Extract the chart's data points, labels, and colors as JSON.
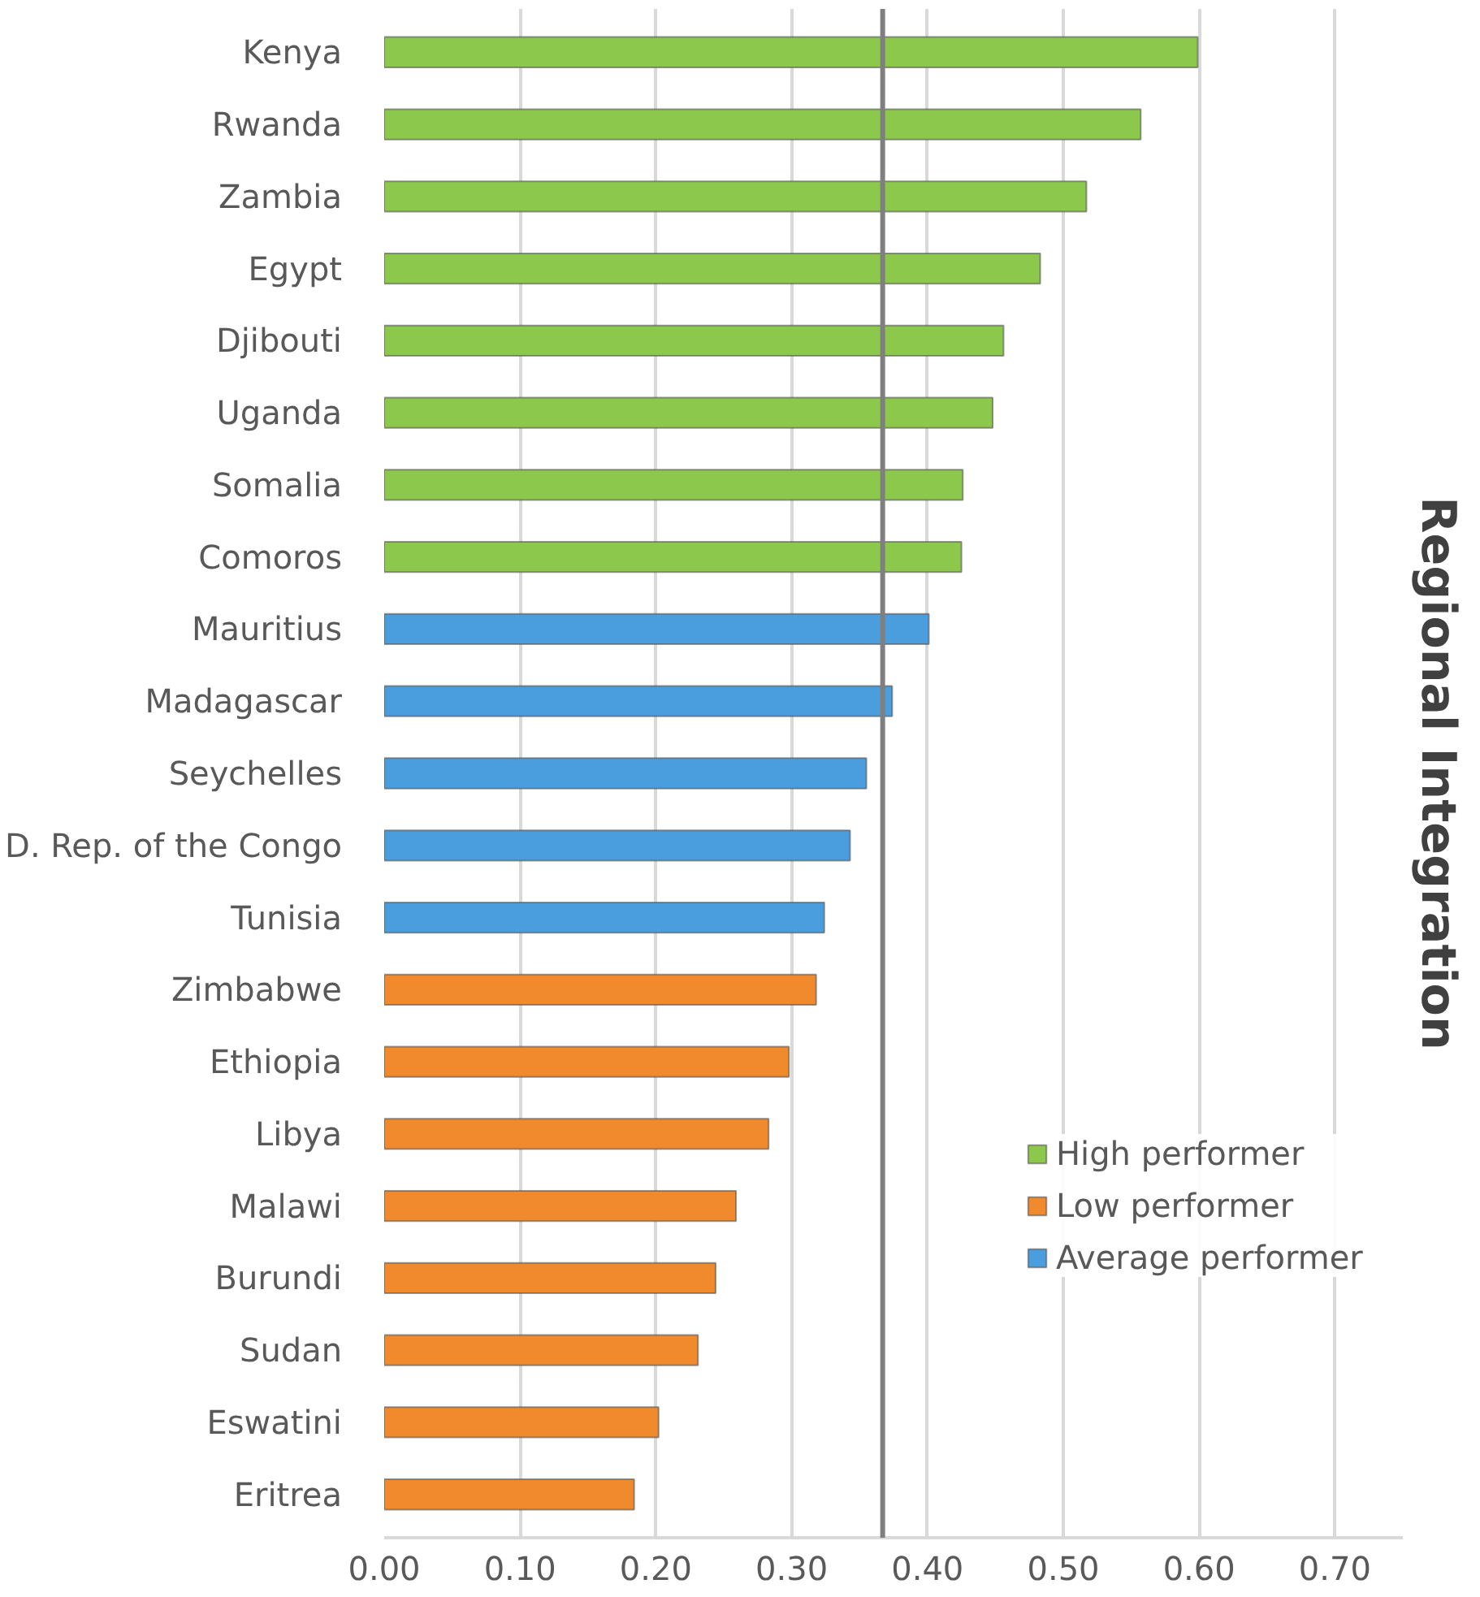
{
  "chart_data": {
    "type": "bar",
    "orientation": "horizontal",
    "ylabel": "Regional Integration",
    "categories": [
      "Kenya",
      "Rwanda",
      "Zambia",
      "Egypt",
      "Djibouti",
      "Uganda",
      "Somalia",
      "Comoros",
      "Mauritius",
      "Madagascar",
      "Seychelles",
      "D. Rep. of the Congo",
      "Tunisia",
      "Zimbabwe",
      "Ethiopia",
      "Libya",
      "Malawi",
      "Burundi",
      "Sudan",
      "Eswatini",
      "Eritrea"
    ],
    "series": [
      {
        "name": "High performer",
        "color": "#8cc84b",
        "values": [
          0.599,
          0.557,
          0.517,
          0.483,
          0.456,
          0.448,
          0.426,
          0.425,
          null,
          null,
          null,
          null,
          null,
          null,
          null,
          null,
          null,
          null,
          null,
          null,
          null
        ]
      },
      {
        "name": "Low performer",
        "color": "#f08a2c",
        "values": [
          null,
          null,
          null,
          null,
          null,
          null,
          null,
          null,
          null,
          null,
          null,
          null,
          null,
          0.318,
          0.298,
          0.283,
          0.259,
          0.244,
          0.231,
          0.202,
          0.184
        ]
      },
      {
        "name": "Average performer",
        "color": "#4a9ede",
        "values": [
          null,
          null,
          null,
          null,
          null,
          null,
          null,
          null,
          0.401,
          0.374,
          0.355,
          0.343,
          0.324,
          null,
          null,
          null,
          null,
          null,
          null,
          null,
          null
        ]
      }
    ],
    "xlim": [
      0,
      0.75
    ],
    "xticks": [
      {
        "value": 0,
        "label": "0.00"
      },
      {
        "value": 0.1,
        "label": "0.10"
      },
      {
        "value": 0.2,
        "label": "0.20"
      },
      {
        "value": 0.3,
        "label": "0.30"
      },
      {
        "value": 0.4,
        "label": "0.40"
      },
      {
        "value": 0.5,
        "label": "0.50"
      },
      {
        "value": 0.6,
        "label": "0.60"
      },
      {
        "value": 0.7,
        "label": "0.70"
      }
    ],
    "grid": "x",
    "legend": "right",
    "ref_lines": [
      {
        "axis": "x",
        "value": 0.367,
        "label": null,
        "color": "#7f7f7f"
      }
    ]
  }
}
